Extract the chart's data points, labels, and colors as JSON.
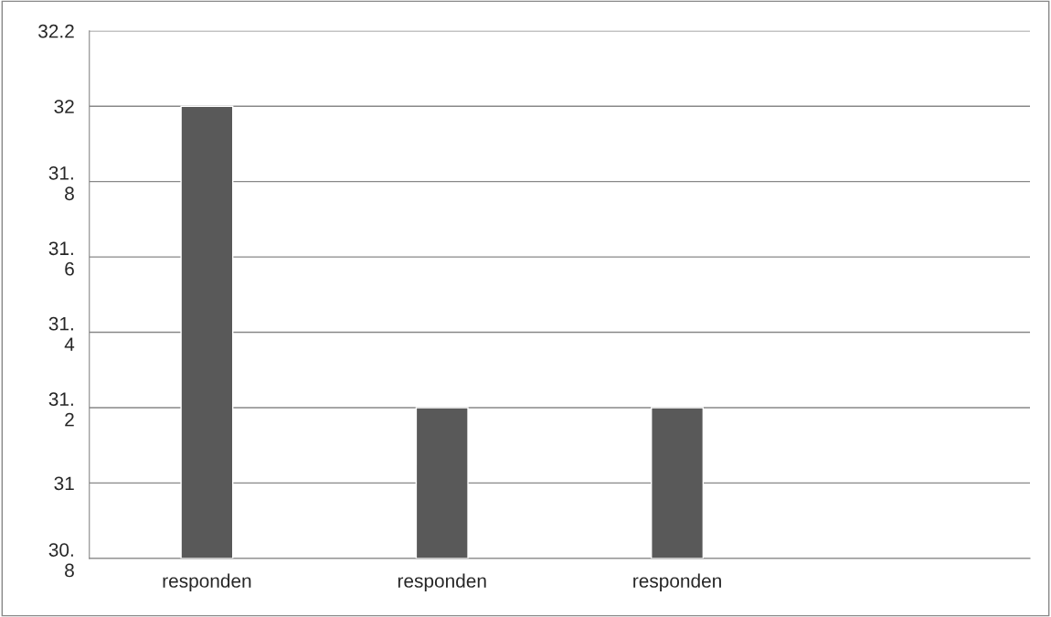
{
  "chart_data": {
    "type": "bar",
    "categories": [
      "responden",
      "responden",
      "responden",
      null
    ],
    "values": [
      32,
      31.2,
      31.2,
      null
    ],
    "color": "#595959",
    "ylim": [
      30.8,
      32.2
    ],
    "yticks": [
      {
        "value": 30.8,
        "label": "30.\n8"
      },
      31,
      {
        "value": 31.2,
        "label": "31.\n2"
      },
      {
        "value": 31.4,
        "label": "31.\n4"
      },
      {
        "value": 31.6,
        "label": "31.\n6"
      },
      {
        "value": 31.8,
        "label": "31.\n8"
      },
      32,
      32.2
    ],
    "grid": "y",
    "legend": false
  }
}
